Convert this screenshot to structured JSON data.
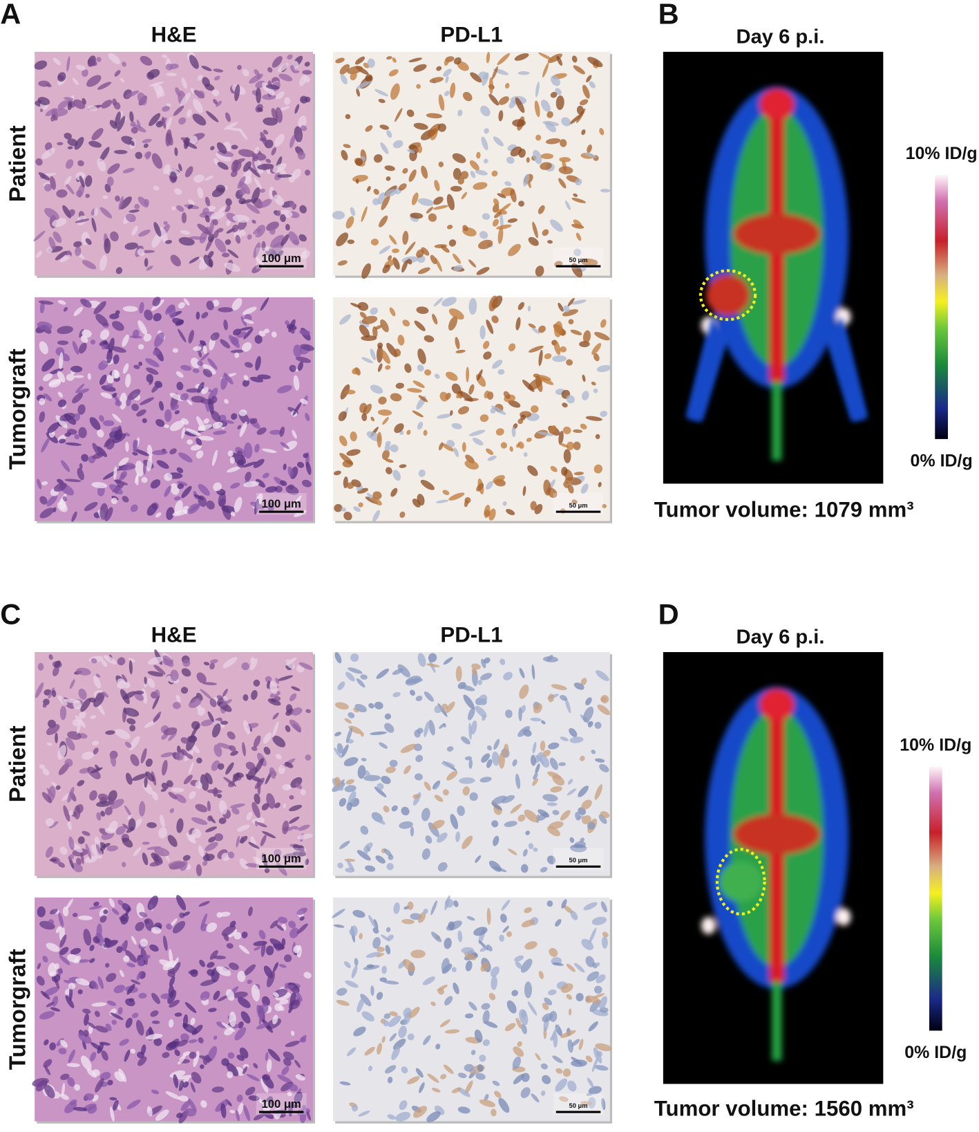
{
  "panels": [
    {
      "label": "A",
      "columns": [
        "H&E",
        "PD-L1"
      ],
      "rows": [
        "Patient",
        "Tumorgraft"
      ],
      "scale_bars": [
        [
          "100 μm",
          "50 μm"
        ],
        [
          "100 μm",
          "50 μm"
        ]
      ]
    },
    {
      "label": "B",
      "title": "Day 6 p.i.",
      "colorbar_top": "10% ID/g",
      "colorbar_bottom": "0% ID/g",
      "caption": "Tumor volume: 1079 mm³"
    },
    {
      "label": "C",
      "columns": [
        "H&E",
        "PD-L1"
      ],
      "rows": [
        "Patient",
        "Tumorgraft"
      ],
      "scale_bars": [
        [
          "100 μm",
          "50 μm"
        ],
        [
          "100 μm",
          "50 μm"
        ]
      ]
    },
    {
      "label": "D",
      "title": "Day 6 p.i.",
      "colorbar_top": "10% ID/g",
      "colorbar_bottom": "0% ID/g",
      "caption": "Tumor volume: 1560 mm³"
    }
  ]
}
